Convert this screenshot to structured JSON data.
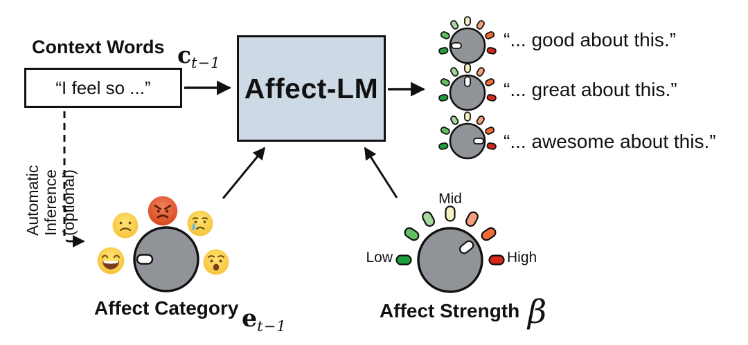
{
  "context": {
    "label": "Context Words",
    "symbol_base": "c",
    "symbol_sub": "t−1",
    "input_text": "“I feel so ...”"
  },
  "model": {
    "name": "Affect-LM",
    "box_fill": "#cdd9e4"
  },
  "inference": {
    "lines": [
      "Automatic",
      "Inference",
      "(optional)"
    ]
  },
  "outputs": [
    {
      "text": "“... good about this.”",
      "knob_angle": 180
    },
    {
      "text": "“... great about this.”",
      "knob_angle": 90
    },
    {
      "text": "“... awesome about this.”",
      "knob_angle": 0
    }
  ],
  "category": {
    "label": "Affect Category",
    "symbol_base": "e",
    "symbol_sub": "t−1",
    "knob_angle": 180,
    "emojis": [
      "grinning-face",
      "frowning-face",
      "angry-face",
      "crying-face",
      "fearful-face"
    ]
  },
  "strength": {
    "label": "Affect Strength",
    "symbol": "β",
    "knob_angle": 38,
    "low_label": "Low",
    "mid_label": "Mid",
    "high_label": "High"
  },
  "knob_style": {
    "body_color": "#909397",
    "indicator_color": "#ffffff",
    "outline_color": "#111111",
    "tick_colors": [
      "#1f9e3d",
      "#62c062",
      "#a6d89b",
      "#f6f2c6",
      "#f5a07b",
      "#f16b37",
      "#d6281c"
    ],
    "tick_angles_small": [
      192,
      155,
      122,
      90,
      58,
      25,
      -12
    ],
    "tick_angles_large": [
      180,
      146,
      118,
      90,
      62,
      34,
      0
    ]
  }
}
